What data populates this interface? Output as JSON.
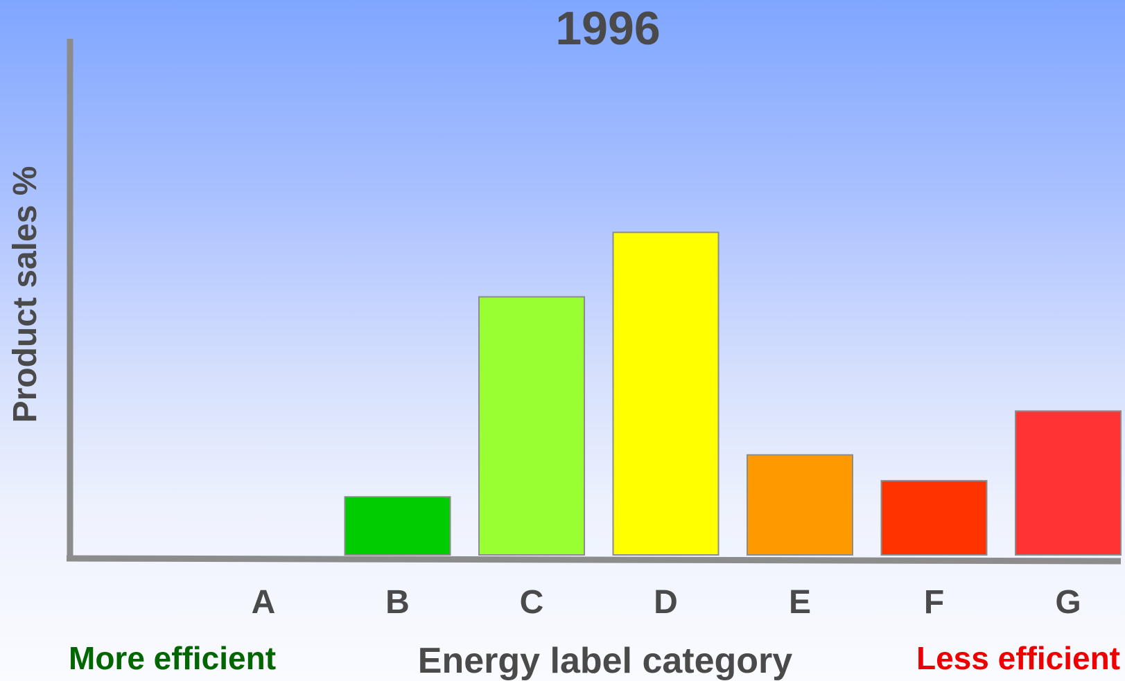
{
  "chart_data": {
    "type": "bar",
    "title": "1996",
    "xlabel": "Energy label category",
    "ylabel": "Product sales %",
    "categories": [
      "A",
      "B",
      "C",
      "D",
      "E",
      "F",
      "G"
    ],
    "values": [
      0,
      9,
      40,
      50,
      15.5,
      11.5,
      22.3
    ],
    "colors": [
      "#00cc00",
      "#00cc00",
      "#99ff33",
      "#ffff00",
      "#ff9900",
      "#ff3300",
      "#ff3333"
    ],
    "ylim": [
      0,
      80
    ],
    "grid": false,
    "legend": "none"
  },
  "annotations": {
    "more_efficient": "More efficient",
    "more_efficient_color": "#006600",
    "less_efficient": "Less efficient",
    "less_efficient_color": "#ee0000"
  }
}
